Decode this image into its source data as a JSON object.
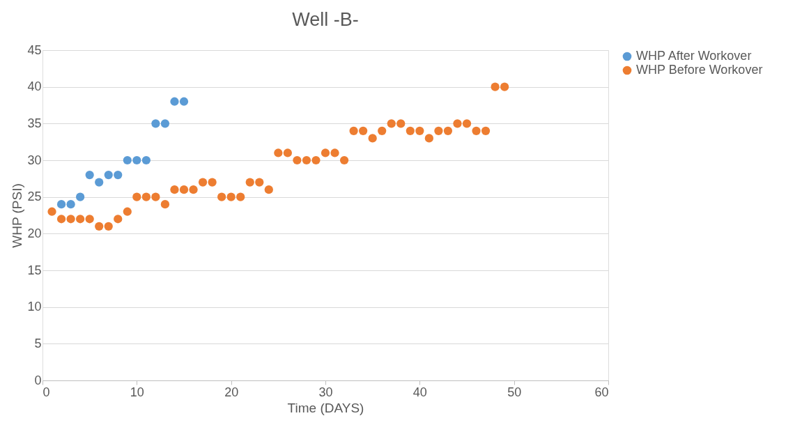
{
  "chart_data": {
    "type": "scatter",
    "title": "Well -B-",
    "xlabel": "Time (DAYS)",
    "ylabel": "WHP (PSI)",
    "xlim": [
      0,
      60
    ],
    "xticks": [
      0,
      10,
      20,
      30,
      40,
      50,
      60
    ],
    "ylim": [
      0,
      45
    ],
    "yticks": [
      0,
      5,
      10,
      15,
      20,
      25,
      30,
      35,
      40,
      45
    ],
    "grid": "y",
    "legend": "right",
    "marker": "circle",
    "series": [
      {
        "name": "WHP After Workover",
        "color": "#5b9bd5",
        "x": [
          2,
          3,
          4,
          5,
          6,
          7,
          8,
          9,
          10,
          11,
          12,
          13,
          14,
          15
        ],
        "values": [
          24,
          24,
          25,
          28,
          27,
          28,
          28,
          30,
          30,
          30,
          35,
          35,
          38,
          38
        ]
      },
      {
        "name": "WHP Before Workover",
        "color": "#ed7d31",
        "x": [
          1,
          2,
          3,
          4,
          5,
          6,
          7,
          8,
          9,
          10,
          11,
          12,
          13,
          14,
          15,
          16,
          17,
          18,
          19,
          20,
          21,
          22,
          23,
          24,
          25,
          26,
          27,
          28,
          29,
          30,
          31,
          32,
          33,
          34,
          35,
          36,
          37,
          38,
          39,
          40,
          41,
          42,
          43,
          44,
          45,
          46,
          47,
          48,
          49
        ],
        "values": [
          23,
          22,
          22,
          22,
          22,
          21,
          21,
          22,
          23,
          25,
          25,
          25,
          24,
          26,
          26,
          26,
          27,
          27,
          25,
          25,
          25,
          27,
          27,
          26,
          31,
          31,
          30,
          30,
          30,
          31,
          31,
          30,
          34,
          34,
          33,
          34,
          35,
          35,
          34,
          34,
          33,
          34,
          34,
          35,
          35,
          34,
          34,
          40,
          40
        ]
      }
    ]
  }
}
